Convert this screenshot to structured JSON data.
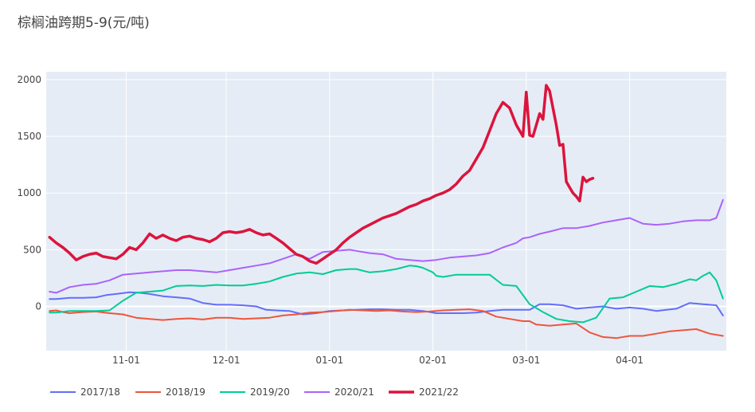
{
  "title": "棕榈油跨期5-9(元/吨)",
  "chart_data": {
    "type": "line",
    "title": "棕榈油跨期5-9(元/吨)",
    "xlabel": "",
    "ylabel": "",
    "x_ticks": [
      "11-01",
      "12-01",
      "01-01",
      "02-01",
      "03-01",
      "04-01"
    ],
    "x_tick_days": [
      31,
      61,
      92,
      123,
      151,
      182
    ],
    "xlim_days": [
      7,
      211
    ],
    "ylim": [
      -390,
      2070
    ],
    "y_ticks": [
      0,
      500,
      1000,
      1500,
      2000
    ],
    "grid": true,
    "legend_position": "bottom-left",
    "background": "#e5ecf6",
    "series": [
      {
        "name": "2017/18",
        "color": "#636efa",
        "width": 2,
        "x": [
          8,
          10,
          14,
          18,
          22,
          25,
          28,
          32,
          35,
          38,
          42,
          46,
          50,
          54,
          58,
          62,
          66,
          70,
          73,
          76,
          80,
          84,
          88,
          92,
          96,
          100,
          104,
          108,
          112,
          116,
          120,
          124,
          128,
          132,
          136,
          140,
          144,
          148,
          150,
          152,
          155,
          158,
          162,
          166,
          170,
          174,
          178,
          182,
          186,
          190,
          193,
          196,
          200,
          204,
          208,
          210
        ],
        "y": [
          65,
          65,
          75,
          75,
          80,
          100,
          110,
          125,
          120,
          110,
          90,
          80,
          70,
          30,
          15,
          15,
          10,
          0,
          -30,
          -35,
          -40,
          -70,
          -60,
          -40,
          -35,
          -30,
          -25,
          -25,
          -30,
          -30,
          -40,
          -60,
          -60,
          -60,
          -55,
          -40,
          -30,
          -30,
          -30,
          -30,
          20,
          20,
          10,
          -20,
          -10,
          0,
          -20,
          -10,
          -20,
          -40,
          -30,
          -20,
          30,
          20,
          10,
          -80
        ]
      },
      {
        "name": "2018/19",
        "color": "#ef553b",
        "width": 2,
        "x": [
          8,
          10,
          12,
          14,
          18,
          22,
          26,
          30,
          34,
          38,
          42,
          46,
          50,
          54,
          58,
          62,
          66,
          70,
          74,
          78,
          82,
          86,
          90,
          94,
          98,
          102,
          106,
          110,
          114,
          118,
          122,
          126,
          130,
          134,
          138,
          142,
          146,
          150,
          152,
          154,
          158,
          162,
          166,
          170,
          174,
          178,
          182,
          186,
          190,
          194,
          198,
          202,
          206,
          210
        ],
        "y": [
          -40,
          -35,
          -50,
          -60,
          -50,
          -45,
          -60,
          -70,
          -100,
          -110,
          -120,
          -110,
          -105,
          -115,
          -100,
          -100,
          -110,
          -105,
          -100,
          -80,
          -70,
          -55,
          -50,
          -40,
          -30,
          -35,
          -40,
          -35,
          -45,
          -50,
          -45,
          -35,
          -30,
          -25,
          -40,
          -90,
          -110,
          -130,
          -130,
          -160,
          -170,
          -160,
          -150,
          -230,
          -270,
          -280,
          -260,
          -260,
          -240,
          -220,
          -210,
          -200,
          -240,
          -260
        ]
      },
      {
        "name": "2019/20",
        "color": "#00cc96",
        "width": 2,
        "x": [
          8,
          10,
          14,
          18,
          22,
          26,
          30,
          34,
          38,
          42,
          46,
          50,
          54,
          58,
          62,
          66,
          70,
          74,
          78,
          82,
          86,
          90,
          94,
          98,
          100,
          104,
          108,
          110,
          112,
          116,
          118,
          120,
          123,
          124,
          126,
          130,
          134,
          136,
          140,
          144,
          148,
          152,
          156,
          160,
          164,
          168,
          172,
          176,
          180,
          184,
          188,
          192,
          196,
          200,
          202,
          204,
          206,
          208,
          210
        ],
        "y": [
          -55,
          -55,
          -40,
          -40,
          -40,
          -35,
          50,
          120,
          130,
          140,
          180,
          185,
          180,
          190,
          185,
          185,
          200,
          220,
          260,
          290,
          300,
          285,
          320,
          330,
          330,
          300,
          310,
          320,
          330,
          360,
          355,
          340,
          300,
          270,
          260,
          280,
          280,
          280,
          280,
          190,
          180,
          20,
          -50,
          -110,
          -130,
          -140,
          -100,
          70,
          80,
          130,
          180,
          170,
          200,
          240,
          230,
          270,
          300,
          230,
          70
        ]
      },
      {
        "name": "2020/21",
        "color": "#ab63fa",
        "width": 2,
        "x": [
          8,
          10,
          14,
          18,
          22,
          26,
          30,
          34,
          38,
          42,
          46,
          50,
          54,
          58,
          62,
          66,
          70,
          74,
          78,
          82,
          86,
          90,
          94,
          98,
          100,
          104,
          108,
          110,
          112,
          116,
          120,
          124,
          128,
          132,
          136,
          140,
          144,
          148,
          150,
          152,
          155,
          158,
          162,
          166,
          170,
          174,
          178,
          182,
          186,
          190,
          194,
          198,
          202,
          206,
          208,
          210
        ],
        "y": [
          130,
          120,
          170,
          190,
          200,
          230,
          280,
          290,
          300,
          310,
          320,
          320,
          310,
          300,
          320,
          340,
          360,
          380,
          420,
          460,
          420,
          480,
          490,
          500,
          490,
          470,
          460,
          440,
          420,
          410,
          400,
          410,
          430,
          440,
          450,
          470,
          520,
          560,
          600,
          610,
          640,
          660,
          690,
          690,
          710,
          740,
          760,
          780,
          730,
          720,
          730,
          750,
          760,
          760,
          780,
          940
        ]
      },
      {
        "name": "2021/22",
        "color": "#dc143c",
        "width": 3.5,
        "x": [
          8,
          10,
          12,
          14,
          15,
          16,
          18,
          20,
          22,
          24,
          26,
          28,
          30,
          32,
          34,
          36,
          38,
          40,
          42,
          44,
          46,
          48,
          50,
          52,
          54,
          56,
          58,
          60,
          62,
          64,
          66,
          68,
          70,
          72,
          74,
          76,
          78,
          80,
          82,
          84,
          86,
          88,
          90,
          92,
          94,
          96,
          98,
          100,
          102,
          104,
          106,
          108,
          110,
          112,
          114,
          116,
          118,
          120,
          122,
          124,
          126,
          128,
          130,
          132,
          134,
          136,
          138,
          140,
          142,
          144,
          146,
          148,
          150,
          151,
          152,
          153,
          154,
          155,
          156,
          157,
          158,
          159,
          160,
          161,
          162,
          163,
          164,
          165,
          166,
          167,
          168,
          169,
          170,
          171
        ],
        "y": [
          610,
          560,
          520,
          470,
          440,
          410,
          440,
          460,
          470,
          440,
          430,
          420,
          460,
          520,
          500,
          560,
          640,
          600,
          630,
          600,
          580,
          610,
          620,
          600,
          590,
          570,
          600,
          650,
          660,
          650,
          660,
          680,
          650,
          630,
          640,
          600,
          560,
          510,
          460,
          440,
          400,
          380,
          420,
          460,
          500,
          560,
          610,
          650,
          690,
          720,
          750,
          780,
          800,
          820,
          850,
          880,
          900,
          930,
          950,
          980,
          1000,
          1030,
          1080,
          1150,
          1200,
          1300,
          1400,
          1550,
          1700,
          1800,
          1750,
          1600,
          1500,
          1890,
          1510,
          1500,
          1600,
          1700,
          1650,
          1950,
          1900,
          1750,
          1600,
          1420,
          1430,
          1100,
          1050,
          1000,
          970,
          930,
          1140,
          1100,
          1120,
          1130
        ]
      }
    ]
  }
}
